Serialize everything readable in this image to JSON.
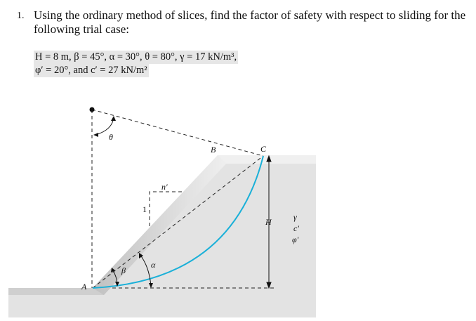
{
  "problem": {
    "number": "1.",
    "text": "Using the ordinary method of slices, find the factor of safety with respect to sliding for the following trial case:",
    "given_line1": "H = 8 m, β = 45°, α = 30°, θ = 80°, γ = 17 kN/m³,",
    "given_line2": "φ′ = 20°, and c′ = 27 kN/m²"
  },
  "figure": {
    "labels": {
      "A": "A",
      "B": "B",
      "C": "C",
      "H": "H",
      "theta": "θ",
      "alpha": "α",
      "beta": "β",
      "n": "n′",
      "one": "1",
      "gamma": "γ",
      "c": "c′",
      "phi": "φ′"
    },
    "colors": {
      "slip_surface": "#1ab0d8",
      "soil": "#e3e3e3"
    }
  }
}
